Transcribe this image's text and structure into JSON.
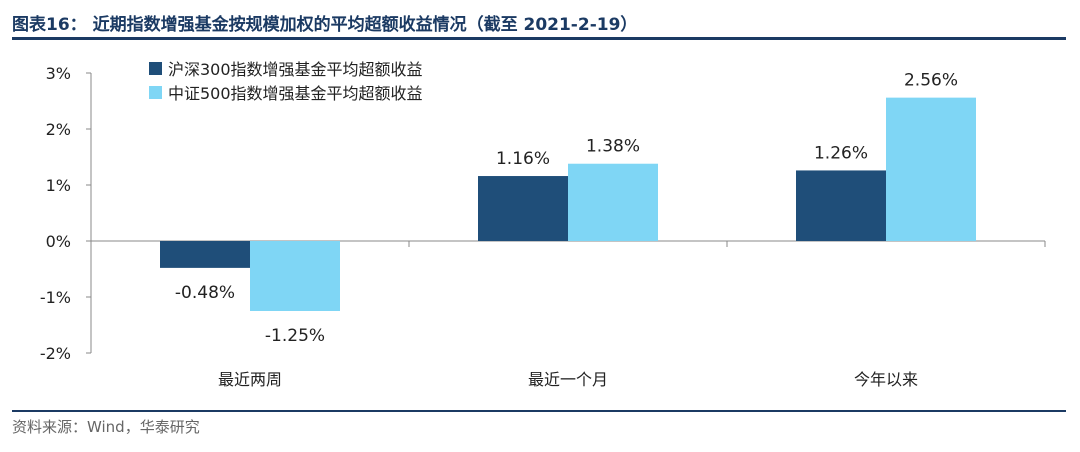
{
  "figure": {
    "title": "图表16： 近期指数增强基金按规模加权的平均超额收益情况（截至 2021-2-19）",
    "source": "资料来源：Wind，华泰研究"
  },
  "chart_data": {
    "type": "bar",
    "categories": [
      "最近两周",
      "最近一个月",
      "今年以来"
    ],
    "series": [
      {
        "name": "沪深300指数增强基金平均超额收益",
        "values": [
          -0.48,
          1.16,
          1.26
        ],
        "labels": [
          "-0.48%",
          "1.16%",
          "1.26%"
        ],
        "color": "#1f4e79"
      },
      {
        "name": "中证500指数增强基金平均超额收益",
        "values": [
          -1.25,
          1.38,
          2.56
        ],
        "labels": [
          "-1.25%",
          "1.38%",
          "2.56%"
        ],
        "color": "#7fd6f5"
      }
    ],
    "ylim": [
      -2,
      3
    ],
    "yticks": [
      3,
      2,
      1,
      0,
      -1,
      -2
    ],
    "ytick_labels": [
      "3%",
      "2%",
      "1%",
      "0%",
      "-1%",
      "-2%"
    ],
    "legend_position": "top-left",
    "grid": false
  }
}
